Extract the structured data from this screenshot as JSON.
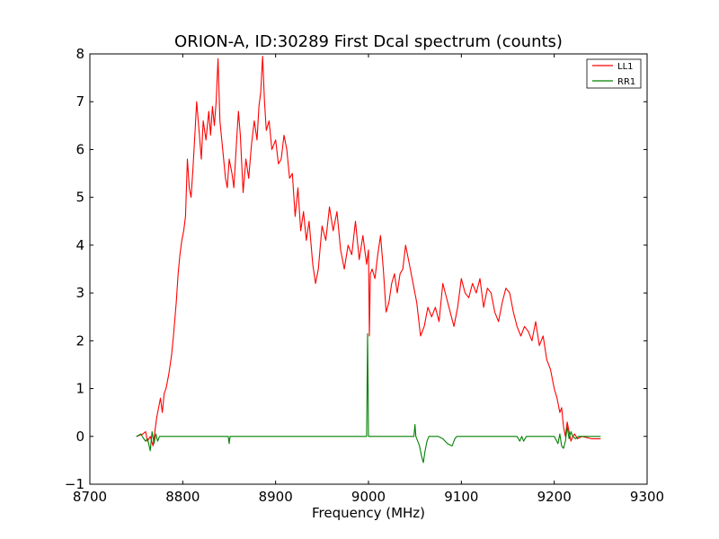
{
  "chart_data": {
    "type": "line",
    "title": "ORION-A, ID:30289 First Dcal spectrum (counts)",
    "xlabel": "Frequency (MHz)",
    "ylabel": "",
    "xlim": [
      8700,
      9300
    ],
    "ylim": [
      -1,
      8
    ],
    "xticks": [
      8700,
      8800,
      8900,
      9000,
      9100,
      9200,
      9300
    ],
    "yticks": [
      -1,
      0,
      1,
      2,
      3,
      4,
      5,
      6,
      7,
      8
    ],
    "ytick_labels": [
      "−1",
      "0",
      "1",
      "2",
      "3",
      "4",
      "5",
      "6",
      "7",
      "8"
    ],
    "grid": false,
    "legend_position": "top-right",
    "series": [
      {
        "name": "LL1",
        "color": "#ff0000",
        "x": [
          8750,
          8757,
          8760,
          8762,
          8765,
          8768,
          8770,
          8772,
          8774,
          8776,
          8778,
          8780,
          8782,
          8785,
          8788,
          8790,
          8793,
          8795,
          8797,
          8799,
          8801,
          8803,
          8805,
          8807,
          8809,
          8811,
          8813,
          8815,
          8818,
          8820,
          8822,
          8825,
          8828,
          8830,
          8832,
          8834,
          8836,
          8838,
          8840,
          8843,
          8846,
          8848,
          8850,
          8853,
          8855,
          8858,
          8860,
          8862,
          8865,
          8868,
          8871,
          8874,
          8877,
          8880,
          8882,
          8884,
          8886,
          8888,
          8890,
          8893,
          8896,
          8900,
          8903,
          8906,
          8909,
          8912,
          8915,
          8918,
          8921,
          8924,
          8927,
          8930,
          8933,
          8936,
          8940,
          8943,
          8946,
          8950,
          8954,
          8958,
          8962,
          8966,
          8970,
          8974,
          8978,
          8982,
          8986,
          8990,
          8994,
          8998,
          9000,
          9001,
          9002,
          9004,
          9007,
          9010,
          9013,
          9016,
          9019,
          9022,
          9025,
          9028,
          9031,
          9034,
          9037,
          9040,
          9044,
          9048,
          9052,
          9056,
          9060,
          9064,
          9068,
          9072,
          9076,
          9080,
          9084,
          9088,
          9092,
          9096,
          9100,
          9104,
          9108,
          9112,
          9116,
          9120,
          9124,
          9128,
          9132,
          9136,
          9140,
          9144,
          9148,
          9152,
          9156,
          9160,
          9164,
          9168,
          9172,
          9176,
          9180,
          9184,
          9188,
          9192,
          9196,
          9200,
          9203,
          9206,
          9208,
          9210,
          9212,
          9214,
          9216,
          9218,
          9220,
          9222,
          9225,
          9230,
          9240,
          9250
        ],
        "y": [
          0.0,
          0.05,
          0.1,
          -0.1,
          0.0,
          -0.2,
          0.1,
          0.4,
          0.6,
          0.8,
          0.5,
          0.9,
          1.0,
          1.3,
          1.7,
          2.1,
          2.8,
          3.4,
          3.8,
          4.1,
          4.3,
          4.6,
          5.8,
          5.2,
          5.0,
          5.6,
          6.3,
          7.0,
          6.3,
          5.8,
          6.6,
          6.2,
          6.8,
          6.3,
          6.9,
          6.5,
          7.0,
          7.9,
          6.6,
          6.0,
          5.4,
          5.2,
          5.8,
          5.5,
          5.2,
          6.2,
          6.8,
          6.3,
          5.1,
          5.8,
          5.4,
          6.1,
          6.6,
          6.2,
          6.9,
          7.2,
          7.95,
          7.0,
          6.4,
          6.6,
          6.0,
          6.2,
          5.7,
          5.8,
          6.3,
          6.0,
          5.4,
          5.5,
          4.6,
          5.2,
          4.3,
          4.7,
          4.1,
          4.5,
          3.6,
          3.2,
          3.5,
          4.4,
          4.1,
          4.8,
          4.3,
          4.7,
          3.9,
          3.5,
          4.0,
          3.8,
          4.5,
          3.7,
          4.2,
          3.6,
          3.9,
          2.1,
          3.4,
          3.5,
          3.3,
          3.8,
          4.2,
          3.5,
          2.6,
          2.8,
          3.2,
          3.4,
          3.0,
          3.4,
          3.5,
          4.0,
          3.6,
          3.2,
          2.8,
          2.1,
          2.3,
          2.7,
          2.5,
          2.7,
          2.4,
          3.2,
          2.9,
          2.6,
          2.3,
          2.7,
          3.3,
          3.0,
          2.9,
          3.2,
          3.0,
          3.3,
          2.7,
          3.1,
          3.0,
          2.6,
          2.4,
          2.8,
          3.1,
          3.0,
          2.6,
          2.3,
          2.1,
          2.3,
          2.2,
          2.0,
          2.4,
          1.9,
          2.1,
          1.6,
          1.4,
          1.0,
          0.8,
          0.5,
          0.6,
          0.2,
          0.0,
          0.3,
          0.1,
          -0.1,
          0.0,
          0.05,
          -0.05,
          0.0,
          -0.05,
          -0.05
        ]
      },
      {
        "name": "RR1",
        "color": "#008000",
        "x": [
          8750,
          8755,
          8758,
          8760,
          8762,
          8765,
          8767,
          8769,
          8771,
          8773,
          8775,
          8780,
          8790,
          8800,
          8810,
          8820,
          8830,
          8840,
          8849,
          8850,
          8851,
          8860,
          8880,
          8900,
          8920,
          8940,
          8960,
          8980,
          8998,
          8999,
          9000,
          9001,
          9002,
          9003,
          9020,
          9040,
          9049,
          9050,
          9051,
          9053,
          9055,
          9057,
          9059,
          9061,
          9063,
          9065,
          9068,
          9075,
          9080,
          9085,
          9090,
          9093,
          9095,
          9097,
          9099,
          9102,
          9110,
          9120,
          9140,
          9160,
          9163,
          9165,
          9167,
          9170,
          9180,
          9190,
          9200,
          9204,
          9206,
          9208,
          9210,
          9212,
          9214,
          9216,
          9218,
          9220,
          9223,
          9226,
          9230,
          9240,
          9250
        ],
        "y": [
          0.0,
          0.05,
          -0.05,
          -0.1,
          -0.05,
          -0.3,
          0.1,
          -0.15,
          0.05,
          -0.1,
          0.0,
          0.0,
          0.0,
          0.0,
          0.0,
          0.0,
          0.0,
          0.0,
          0.0,
          -0.15,
          0.0,
          0.0,
          0.0,
          0.0,
          0.0,
          0.0,
          0.0,
          0.0,
          0.0,
          2.15,
          0.0,
          0.0,
          0.0,
          0.0,
          0.0,
          0.0,
          0.0,
          0.25,
          0.0,
          -0.1,
          -0.2,
          -0.4,
          -0.55,
          -0.3,
          -0.1,
          0.0,
          0.0,
          0.0,
          -0.05,
          -0.15,
          -0.2,
          -0.05,
          0.0,
          0.0,
          0.0,
          0.0,
          0.0,
          0.0,
          0.0,
          0.0,
          -0.1,
          0.0,
          -0.1,
          0.0,
          0.0,
          0.0,
          0.0,
          -0.15,
          0.05,
          -0.2,
          -0.25,
          -0.1,
          0.2,
          -0.05,
          0.1,
          0.0,
          -0.05,
          0.0,
          0.0,
          0.0,
          0.0
        ]
      }
    ]
  }
}
